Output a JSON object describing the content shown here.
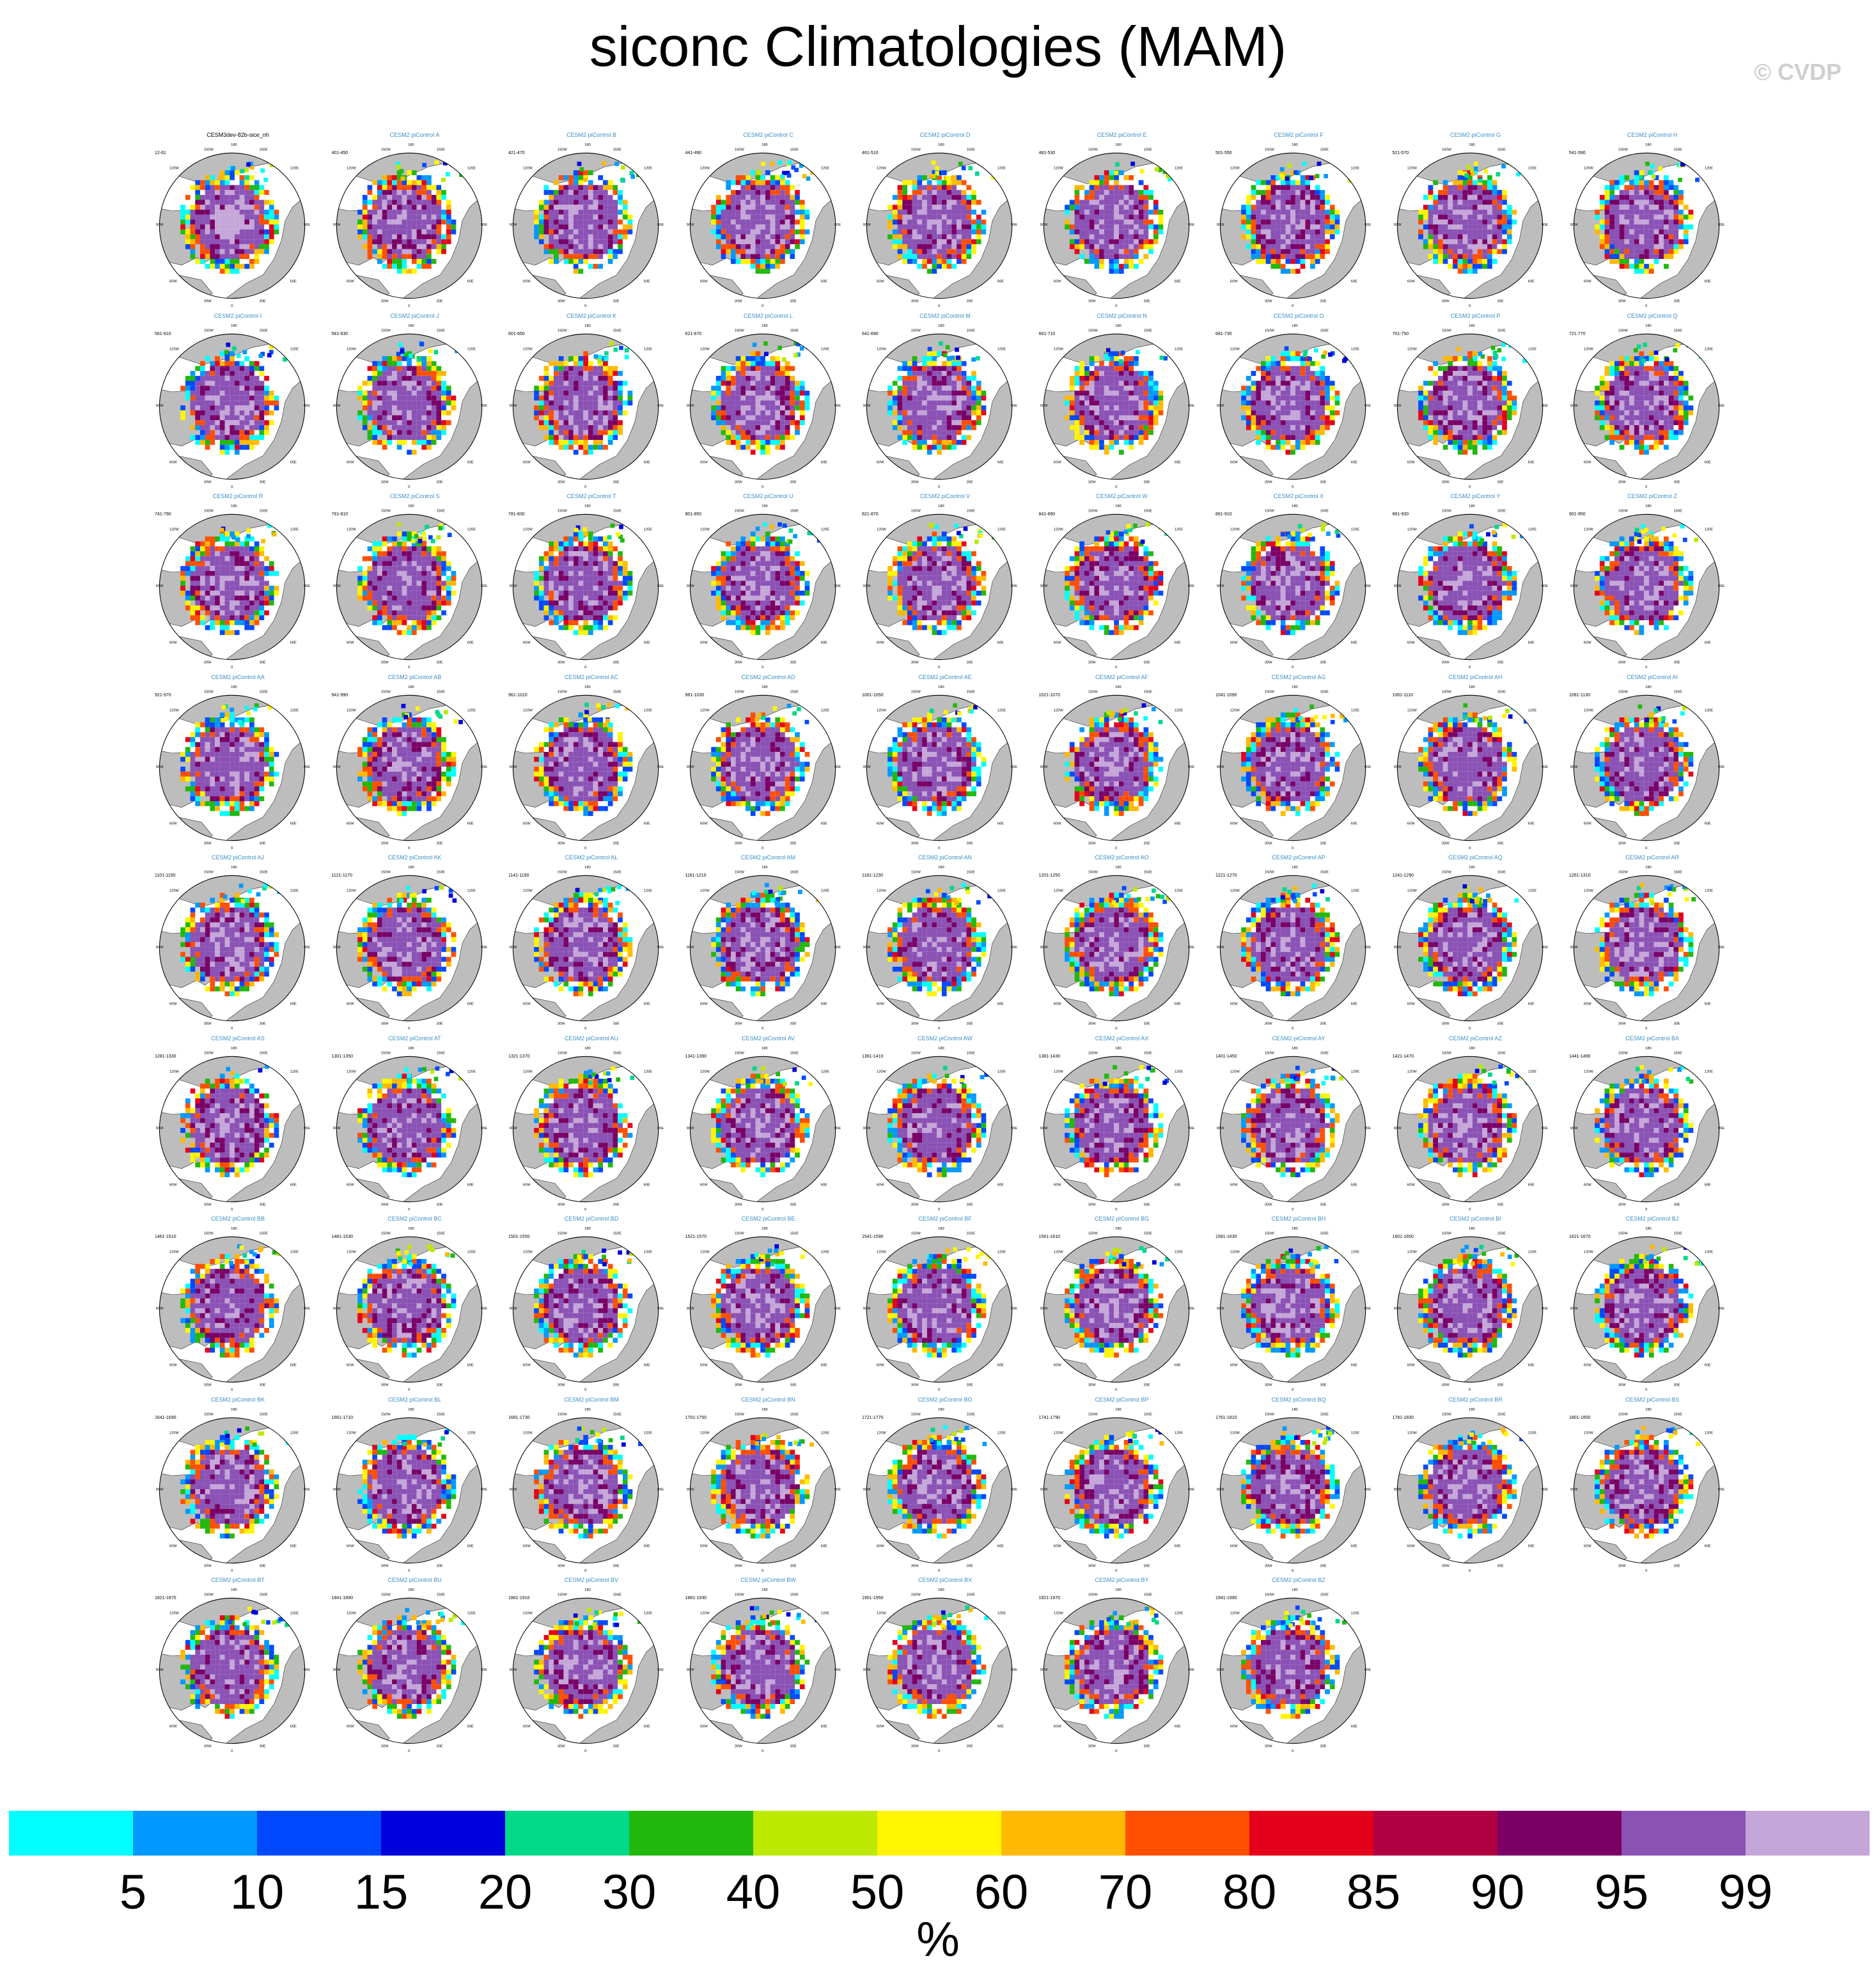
{
  "title": "siconc Climatologies (MAM)",
  "watermark": "© CVDP",
  "chart_data": {
    "type": "heatmap",
    "variable": "siconc",
    "season": "MAM",
    "projection": "polar stereographic, Northern Hemisphere",
    "panels": [
      {
        "title": "CESM3dev-82b-sice_nh",
        "years": "12-61",
        "is_observation": true
      },
      {
        "title": "CESM2 piControl A",
        "years": "401-450"
      },
      {
        "title": "CESM2 piControl B",
        "years": "421-470"
      },
      {
        "title": "CESM2 piControl C",
        "years": "441-490"
      },
      {
        "title": "CESM2 piControl D",
        "years": "461-510"
      },
      {
        "title": "CESM2 piControl E",
        "years": "481-530"
      },
      {
        "title": "CESM2 piControl F",
        "years": "501-550"
      },
      {
        "title": "CESM2 piControl G",
        "years": "521-570"
      },
      {
        "title": "CESM2 piControl H",
        "years": "541-590"
      },
      {
        "title": "CESM2 piControl I",
        "years": "561-610"
      },
      {
        "title": "CESM2 piControl J",
        "years": "581-630"
      },
      {
        "title": "CESM2 piControl K",
        "years": "601-650"
      },
      {
        "title": "CESM2 piControl L",
        "years": "621-670"
      },
      {
        "title": "CESM2 piControl M",
        "years": "641-690"
      },
      {
        "title": "CESM2 piControl N",
        "years": "661-710"
      },
      {
        "title": "CESM2 piControl O",
        "years": "681-730"
      },
      {
        "title": "CESM2 piControl P",
        "years": "701-750"
      },
      {
        "title": "CESM2 piControl Q",
        "years": "721-770"
      },
      {
        "title": "CESM2 piControl R",
        "years": "741-790"
      },
      {
        "title": "CESM2 piControl S",
        "years": "761-810"
      },
      {
        "title": "CESM2 piControl T",
        "years": "781-830"
      },
      {
        "title": "CESM2 piControl U",
        "years": "801-850"
      },
      {
        "title": "CESM2 piControl V",
        "years": "821-870"
      },
      {
        "title": "CESM2 piControl W",
        "years": "841-890"
      },
      {
        "title": "CESM2 piControl X",
        "years": "861-910"
      },
      {
        "title": "CESM2 piControl Y",
        "years": "881-930"
      },
      {
        "title": "CESM2 piControl Z",
        "years": "901-950"
      },
      {
        "title": "CESM2 piControl AA",
        "years": "921-970"
      },
      {
        "title": "CESM2 piControl AB",
        "years": "941-990"
      },
      {
        "title": "CESM2 piControl AC",
        "years": "961-1010"
      },
      {
        "title": "CESM2 piControl AD",
        "years": "981-1030"
      },
      {
        "title": "CESM2 piControl AE",
        "years": "1001-1050"
      },
      {
        "title": "CESM2 piControl AF",
        "years": "1021-1070"
      },
      {
        "title": "CESM2 piControl AG",
        "years": "1041-1090"
      },
      {
        "title": "CESM2 piControl AH",
        "years": "1061-1110"
      },
      {
        "title": "CESM2 piControl AI",
        "years": "1081-1130"
      },
      {
        "title": "CESM2 piControl AJ",
        "years": "1101-1150"
      },
      {
        "title": "CESM2 piControl AK",
        "years": "1121-1170"
      },
      {
        "title": "CESM2 piControl AL",
        "years": "1141-1190"
      },
      {
        "title": "CESM2 piControl AM",
        "years": "1161-1210"
      },
      {
        "title": "CESM2 piControl AN",
        "years": "1181-1230"
      },
      {
        "title": "CESM2 piControl AO",
        "years": "1201-1250"
      },
      {
        "title": "CESM2 piControl AP",
        "years": "1221-1270"
      },
      {
        "title": "CESM2 piControl AQ",
        "years": "1241-1290"
      },
      {
        "title": "CESM2 piControl AR",
        "years": "1261-1310"
      },
      {
        "title": "CESM2 piControl AS",
        "years": "1281-1330"
      },
      {
        "title": "CESM2 piControl AT",
        "years": "1301-1350"
      },
      {
        "title": "CESM2 piControl AU",
        "years": "1321-1370"
      },
      {
        "title": "CESM2 piControl AV",
        "years": "1341-1390"
      },
      {
        "title": "CESM2 piControl AW",
        "years": "1361-1410"
      },
      {
        "title": "CESM2 piControl AX",
        "years": "1381-1430"
      },
      {
        "title": "CESM2 piControl AY",
        "years": "1401-1450"
      },
      {
        "title": "CESM2 piControl AZ",
        "years": "1421-1470"
      },
      {
        "title": "CESM2 piControl BA",
        "years": "1441-1490"
      },
      {
        "title": "CESM2 piControl BB",
        "years": "1461-1510"
      },
      {
        "title": "CESM2 piControl BC",
        "years": "1481-1530"
      },
      {
        "title": "CESM2 piControl BD",
        "years": "1501-1550"
      },
      {
        "title": "CESM2 piControl BE",
        "years": "1521-1570"
      },
      {
        "title": "CESM2 piControl BF",
        "years": "1541-1590"
      },
      {
        "title": "CESM2 piControl BG",
        "years": "1561-1610"
      },
      {
        "title": "CESM2 piControl BH",
        "years": "1581-1630"
      },
      {
        "title": "CESM2 piControl BI",
        "years": "1601-1650"
      },
      {
        "title": "CESM2 piControl BJ",
        "years": "1621-1670"
      },
      {
        "title": "CESM2 piControl BK",
        "years": "1641-1690"
      },
      {
        "title": "CESM2 piControl BL",
        "years": "1661-1710"
      },
      {
        "title": "CESM2 piControl BM",
        "years": "1681-1730"
      },
      {
        "title": "CESM2 piControl BN",
        "years": "1701-1750"
      },
      {
        "title": "CESM2 piControl BO",
        "years": "1721-1770"
      },
      {
        "title": "CESM2 piControl BP",
        "years": "1741-1790"
      },
      {
        "title": "CESM2 piControl BQ",
        "years": "1761-1810"
      },
      {
        "title": "CESM2 piControl BR",
        "years": "1781-1830"
      },
      {
        "title": "CESM2 piControl BS",
        "years": "1801-1850"
      },
      {
        "title": "CESM2 piControl BT",
        "years": "1821-1870"
      },
      {
        "title": "CESM2 piControl BU",
        "years": "1841-1890"
      },
      {
        "title": "CESM2 piControl BV",
        "years": "1861-1910"
      },
      {
        "title": "CESM2 piControl BW",
        "years": "1881-1930"
      },
      {
        "title": "CESM2 piControl BX",
        "years": "1901-1950"
      },
      {
        "title": "CESM2 piControl BY",
        "years": "1921-1970"
      },
      {
        "title": "CESM2 piControl BZ",
        "years": "1941-1990"
      }
    ],
    "map_lon_labels": [
      "180",
      "150W",
      "150E",
      "120W",
      "120E",
      "90W",
      "90E",
      "60W",
      "60E",
      "30W",
      "30E",
      "0"
    ],
    "colorbar": {
      "levels": [
        "5",
        "10",
        "15",
        "20",
        "30",
        "40",
        "50",
        "60",
        "70",
        "80",
        "85",
        "90",
        "95",
        "99"
      ],
      "colors": [
        "#00ffff",
        "#0099ff",
        "#0049ff",
        "#0000dd",
        "#00d88a",
        "#22b80e",
        "#bde800",
        "#fff500",
        "#ffb900",
        "#ff4f00",
        "#e4001c",
        "#b00041",
        "#7a0066",
        "#8b52b5",
        "#c5a6d8"
      ],
      "units": "%"
    },
    "colors": {
      "land": "#bdbdbd",
      "ocean": "#ffffff",
      "coast": "#222222"
    }
  }
}
